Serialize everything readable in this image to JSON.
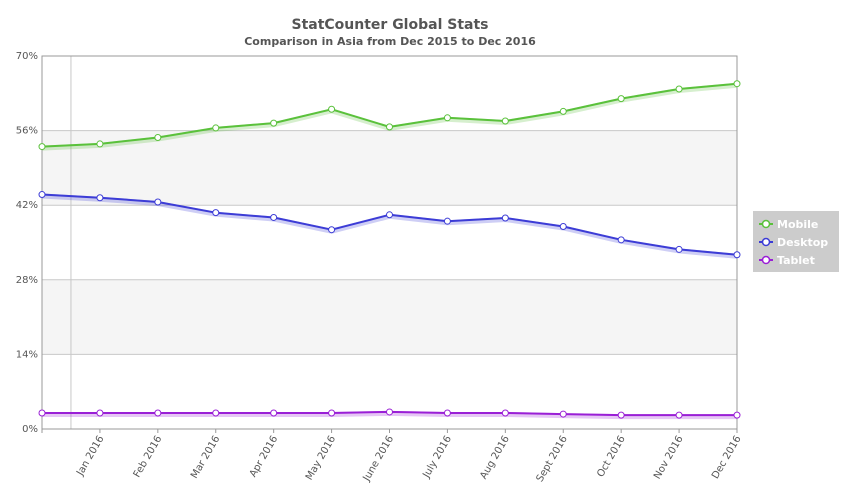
{
  "chart_data": {
    "type": "line",
    "title": "StatCounter Global Stats",
    "subtitle": "Comparison in Asia from Dec 2015 to Dec 2016",
    "x": [
      "Dec 2015",
      "Jan 2016",
      "Feb 2016",
      "Mar 2016",
      "Apr 2016",
      "May 2016",
      "June 2016",
      "July 2016",
      "Aug 2016",
      "Sept 2016",
      "Oct 2016",
      "Nov 2016",
      "Dec 2016"
    ],
    "tick_labels": [
      "",
      "Jan 2016",
      "Feb 2016",
      "Mar 2016",
      "Apr 2016",
      "May 2016",
      "June 2016",
      "July 2016",
      "Aug 2016",
      "Sept 2016",
      "Oct 2016",
      "Nov 2016",
      "Dec 2016"
    ],
    "ylim": [
      0,
      70
    ],
    "yticks": [
      0,
      14,
      28,
      42,
      56,
      70
    ],
    "ytick_labels": [
      "0%",
      "14%",
      "28%",
      "42%",
      "56%",
      "70%"
    ],
    "alternating_bands": true,
    "legend": {
      "placement": "right"
    },
    "series": [
      {
        "name": "Mobile",
        "color": "#5ac13b",
        "values": [
          53.0,
          53.5,
          54.7,
          56.5,
          57.4,
          60.0,
          56.7,
          58.4,
          57.8,
          59.6,
          62.0,
          63.8,
          64.8
        ]
      },
      {
        "name": "Desktop",
        "color": "#3c3cd6",
        "values": [
          44.0,
          43.4,
          42.6,
          40.6,
          39.7,
          37.4,
          40.2,
          39.0,
          39.6,
          38.0,
          35.5,
          33.7,
          32.7
        ]
      },
      {
        "name": "Tablet",
        "color": "#9a1fd6",
        "values": [
          3.0,
          3.0,
          3.0,
          3.0,
          3.0,
          3.0,
          3.2,
          3.0,
          3.0,
          2.8,
          2.6,
          2.6,
          2.6
        ]
      }
    ]
  }
}
